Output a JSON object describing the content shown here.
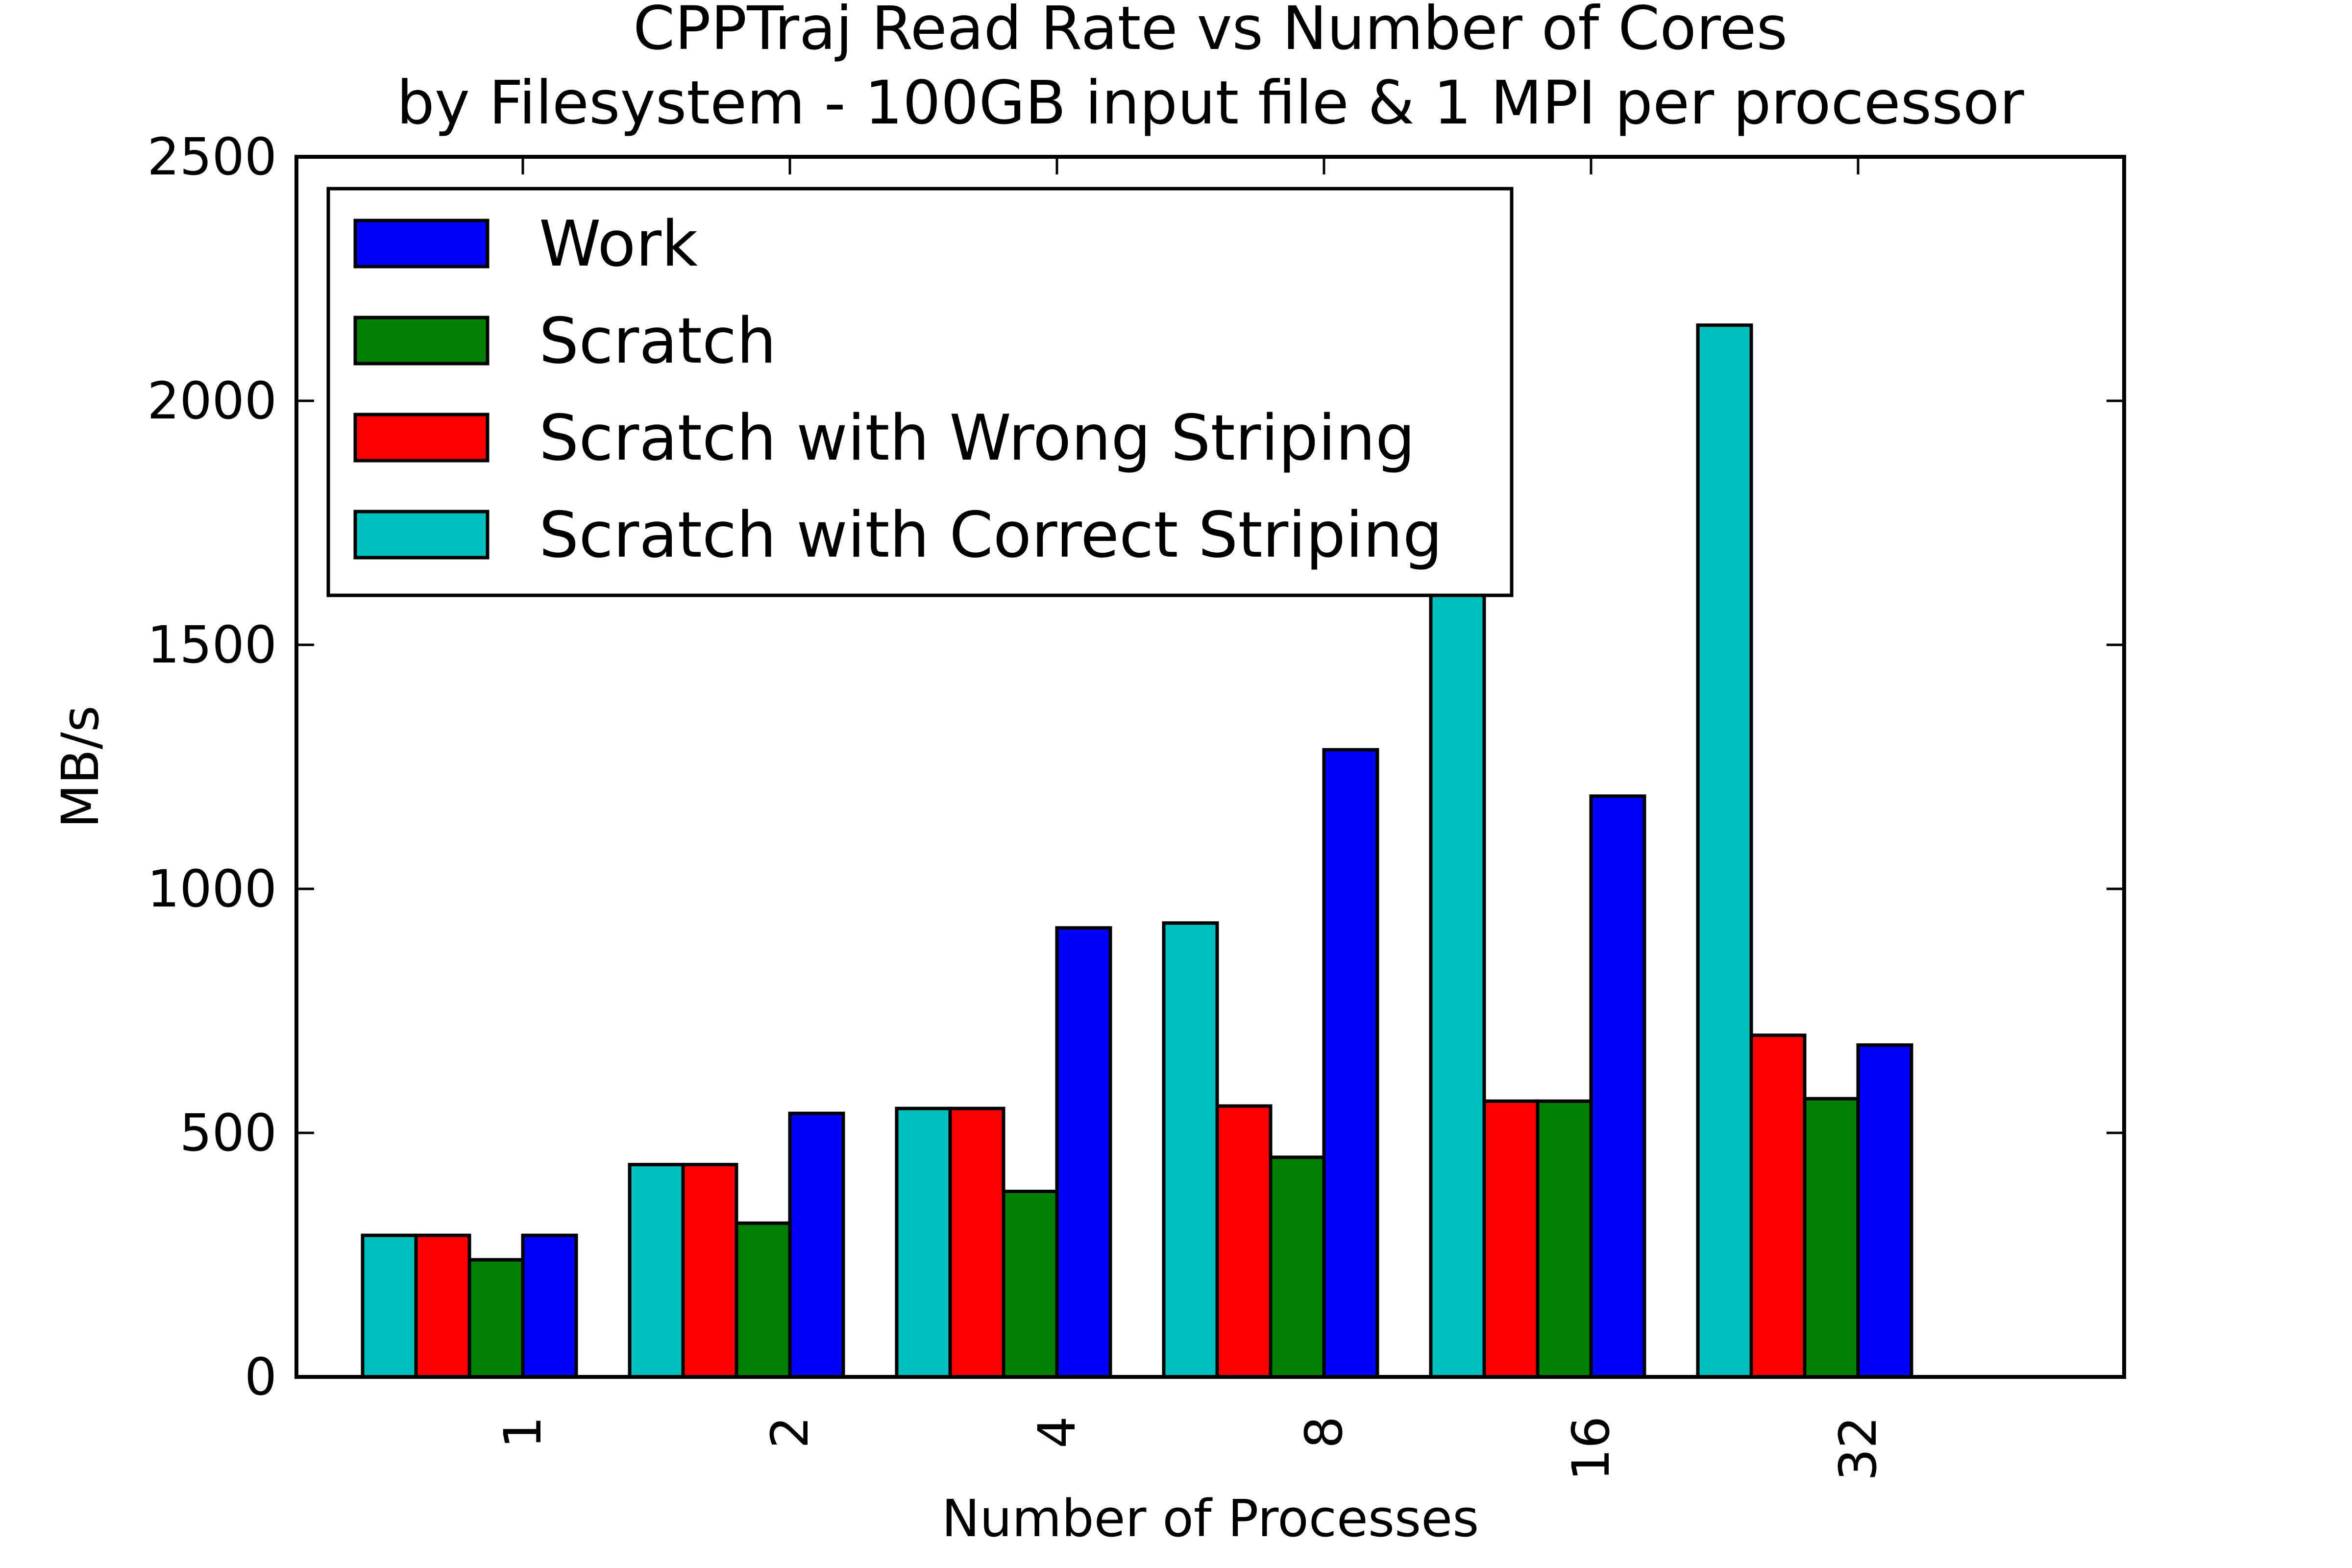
{
  "chart_data": {
    "type": "bar",
    "title": "CPPTraj Read Rate vs Number of Cores",
    "subtitle": "by Filesystem - 100GB input file & 1 MPI per processor",
    "xlabel": "Number of Processes",
    "ylabel": "MB/s",
    "categories": [
      "1",
      "2",
      "4",
      "8",
      "16",
      "32"
    ],
    "ylim": [
      0,
      2500
    ],
    "yticks": [
      0,
      500,
      1000,
      1500,
      2000,
      2500
    ],
    "legend_position": "top-left",
    "grid": false,
    "bar_order": [
      "Scratch with Correct Striping",
      "Scratch with Wrong Striping",
      "Scratch",
      "Work"
    ],
    "series": [
      {
        "name": "Work",
        "color": "#0000ff",
        "values": [
          290,
          540,
          920,
          1285,
          1190,
          680
        ]
      },
      {
        "name": "Scratch",
        "color": "#008000",
        "values": [
          240,
          315,
          380,
          450,
          565,
          570
        ]
      },
      {
        "name": "Scratch with Wrong Striping",
        "color": "#ff0000",
        "values": [
          290,
          435,
          550,
          555,
          565,
          700
        ]
      },
      {
        "name": "Scratch with Correct Striping",
        "color": "#00bfbf",
        "values": [
          290,
          435,
          550,
          930,
          1630,
          2155
        ]
      }
    ]
  }
}
